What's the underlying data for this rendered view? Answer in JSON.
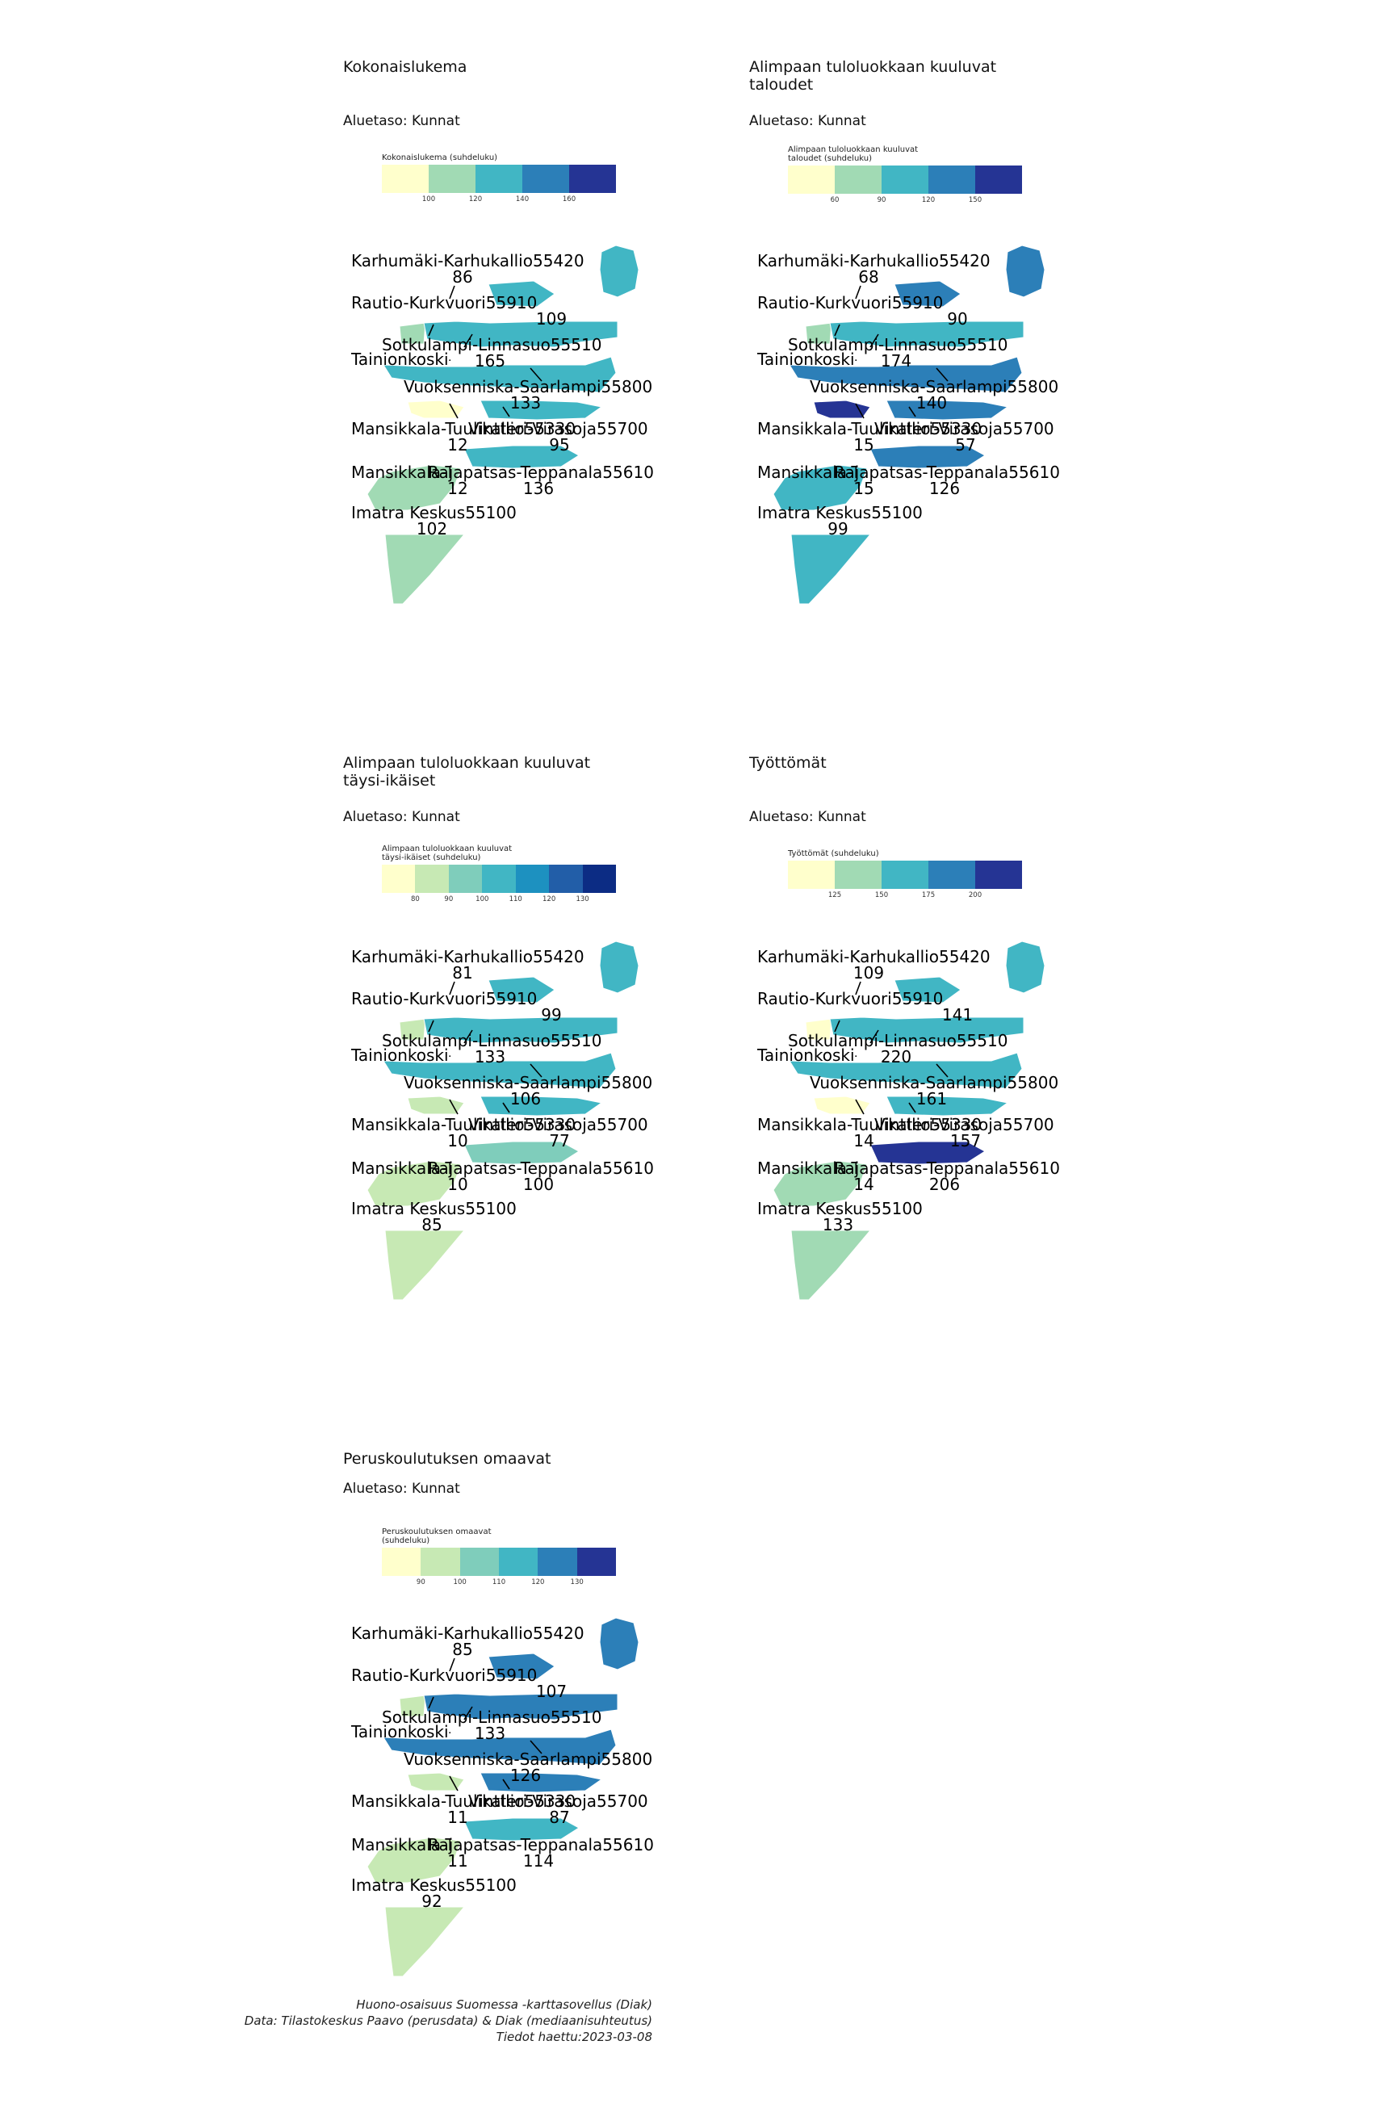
{
  "panels": [
    {
      "title": "Kokonaislukema",
      "subtitle": "Aluetaso: Kunnat",
      "legend_title": "Kokonaislukema (suhdeluku)",
      "legend_colors": [
        "#ffffcc",
        "#a1dab4",
        "#41b6c4",
        "#2c7fb8",
        "#253494"
      ],
      "legend_ticks": [
        "100",
        "120",
        "140",
        "160"
      ],
      "regions": [
        {
          "name": "Karhumäki-Karhukallio55420",
          "value": "86",
          "color": "#41b6c4"
        },
        {
          "name": "Tainionkoski-Pelkola55300",
          "value": "",
          "color": "#a1dab4"
        },
        {
          "name": "Rautio-Kurkvuori55910",
          "value": "109",
          "color": "#41b6c4"
        },
        {
          "name": "Sotkulampi-Linnasuo55510",
          "value": "165",
          "color": "#41b6c4"
        },
        {
          "name": "Vuoksenniska-Saarlampi55800",
          "value": "133",
          "color": "#41b6c4"
        },
        {
          "name": "Mansikkala-Tuulikallio55330",
          "value": "12",
          "color": "#ffffcc"
        },
        {
          "name": "Vintteri-Virasoja55700",
          "value": "95",
          "color": "#41b6c4"
        },
        {
          "name": "Rajapatsas-Teppanala55610",
          "value": "136",
          "color": "#41b6c4"
        },
        {
          "name": "Imatra Keskus55100",
          "value": "102",
          "color": "#a1dab4"
        }
      ]
    },
    {
      "title": "Alimpaan tuloluokkaan kuuluvat taloudet",
      "subtitle": "Aluetaso: Kunnat",
      "legend_title": "Alimpaan tuloluokkaan kuuluvat taloudet (suhdeluku)",
      "legend_colors": [
        "#ffffcc",
        "#a1dab4",
        "#41b6c4",
        "#2c7fb8",
        "#253494"
      ],
      "legend_ticks": [
        "60",
        "90",
        "120",
        "150"
      ],
      "regions": [
        {
          "name": "Karhumäki-Karhukallio55420",
          "value": "68",
          "color": "#2c7fb8"
        },
        {
          "name": "Tainionkoski-Pelkola55300",
          "value": "",
          "color": "#a1dab4"
        },
        {
          "name": "Rautio-Kurkvuori55910",
          "value": "90",
          "color": "#2c7fb8"
        },
        {
          "name": "Sotkulampi-Linnasuo55510",
          "value": "174",
          "color": "#41b6c4"
        },
        {
          "name": "Vuoksenniska-Saarlampi55800",
          "value": "140",
          "color": "#2c7fb8"
        },
        {
          "name": "Mansikkala-Tuulikallio55330",
          "value": "15",
          "color": "#253494"
        },
        {
          "name": "Vintteri-Virasoja55700",
          "value": "57",
          "color": "#2c7fb8"
        },
        {
          "name": "Rajapatsas-Teppanala55610",
          "value": "126",
          "color": "#2c7fb8"
        },
        {
          "name": "Imatra Keskus55100",
          "value": "99",
          "color": "#41b6c4"
        }
      ]
    },
    {
      "title": "Alimpaan tuloluokkaan kuuluvat täysi-ikäiset",
      "subtitle": "Aluetaso: Kunnat",
      "legend_title": "Alimpaan tuloluokkaan kuuluvat täysi-ikäiset (suhdeluku)",
      "legend_colors": [
        "#ffffcc",
        "#c7e9b4",
        "#7fcdbb",
        "#41b6c4",
        "#1d91c0",
        "#225ea8",
        "#0c2c84"
      ],
      "legend_ticks": [
        "80",
        "90",
        "100",
        "110",
        "120",
        "130"
      ],
      "regions": [
        {
          "name": "Karhumäki-Karhukallio55420",
          "value": "81",
          "color": "#41b6c4"
        },
        {
          "name": "Tainionkoski-Pelkola55300",
          "value": "",
          "color": "#c7e9b4"
        },
        {
          "name": "Rautio-Kurkvuori55910",
          "value": "99",
          "color": "#41b6c4"
        },
        {
          "name": "Sotkulampi-Linnasuo55510",
          "value": "133",
          "color": "#41b6c4"
        },
        {
          "name": "Vuoksenniska-Saarlampi55800",
          "value": "106",
          "color": "#41b6c4"
        },
        {
          "name": "Mansikkala-Tuulikallio55330",
          "value": "10",
          "color": "#c7e9b4"
        },
        {
          "name": "Vintteri-Virasoja55700",
          "value": "77",
          "color": "#41b6c4"
        },
        {
          "name": "Rajapatsas-Teppanala55610",
          "value": "100",
          "color": "#7fcdbb"
        },
        {
          "name": "Imatra Keskus55100",
          "value": "85",
          "color": "#c7e9b4"
        }
      ]
    },
    {
      "title": "Työttömät",
      "subtitle": "Aluetaso: Kunnat",
      "legend_title": "Työttömät (suhdeluku)",
      "legend_colors": [
        "#ffffcc",
        "#a1dab4",
        "#41b6c4",
        "#2c7fb8",
        "#253494"
      ],
      "legend_ticks": [
        "125",
        "150",
        "175",
        "200"
      ],
      "regions": [
        {
          "name": "Karhumäki-Karhukallio55420",
          "value": "109",
          "color": "#41b6c4"
        },
        {
          "name": "Tainionkoski-Pelkola55300",
          "value": "",
          "color": "#ffffcc"
        },
        {
          "name": "Rautio-Kurkvuori55910",
          "value": "141",
          "color": "#41b6c4"
        },
        {
          "name": "Sotkulampi-Linnasuo55510",
          "value": "220",
          "color": "#41b6c4"
        },
        {
          "name": "Vuoksenniska-Saarlampi55800",
          "value": "161",
          "color": "#41b6c4"
        },
        {
          "name": "Mansikkala-Tuulikallio55330",
          "value": "14",
          "color": "#ffffcc"
        },
        {
          "name": "Vintteri-Virasoja55700",
          "value": "157",
          "color": "#41b6c4"
        },
        {
          "name": "Rajapatsas-Teppanala55610",
          "value": "206",
          "color": "#253494"
        },
        {
          "name": "Imatra Keskus55100",
          "value": "133",
          "color": "#a1dab4"
        }
      ]
    },
    {
      "title": "Peruskoulutuksen omaavat",
      "subtitle": "Aluetaso: Kunnat",
      "legend_title": "Peruskoulutuksen omaavat (suhdeluku)",
      "legend_colors": [
        "#ffffcc",
        "#c7e9b4",
        "#7fcdbb",
        "#41b6c4",
        "#2c7fb8",
        "#253494"
      ],
      "legend_ticks": [
        "90",
        "100",
        "110",
        "120",
        "130"
      ],
      "regions": [
        {
          "name": "Karhumäki-Karhukallio55420",
          "value": "85",
          "color": "#2c7fb8"
        },
        {
          "name": "Tainionkoski-Pelkola55300",
          "value": "",
          "color": "#c7e9b4"
        },
        {
          "name": "Rautio-Kurkvuori55910",
          "value": "107",
          "color": "#2c7fb8"
        },
        {
          "name": "Sotkulampi-Linnasuo55510",
          "value": "133",
          "color": "#2c7fb8"
        },
        {
          "name": "Vuoksenniska-Saarlampi55800",
          "value": "126",
          "color": "#2c7fb8"
        },
        {
          "name": "Mansikkala-Tuulikallio55330",
          "value": "11",
          "color": "#c7e9b4"
        },
        {
          "name": "Vintteri-Virasoja55700",
          "value": "87",
          "color": "#2c7fb8"
        },
        {
          "name": "Rajapatsas-Teppanala55610",
          "value": "114",
          "color": "#41b6c4"
        },
        {
          "name": "Imatra Keskus55100",
          "value": "92",
          "color": "#c7e9b4"
        }
      ]
    }
  ],
  "caption": {
    "line1": "Huono-osaisuus Suomessa -karttasovellus (Diak)",
    "line2": "Data: Tilastokeskus Paavo (perusdata) & Diak (mediaanisuhteutus)",
    "line3": "Tiedot haettu:2023-03-08"
  }
}
